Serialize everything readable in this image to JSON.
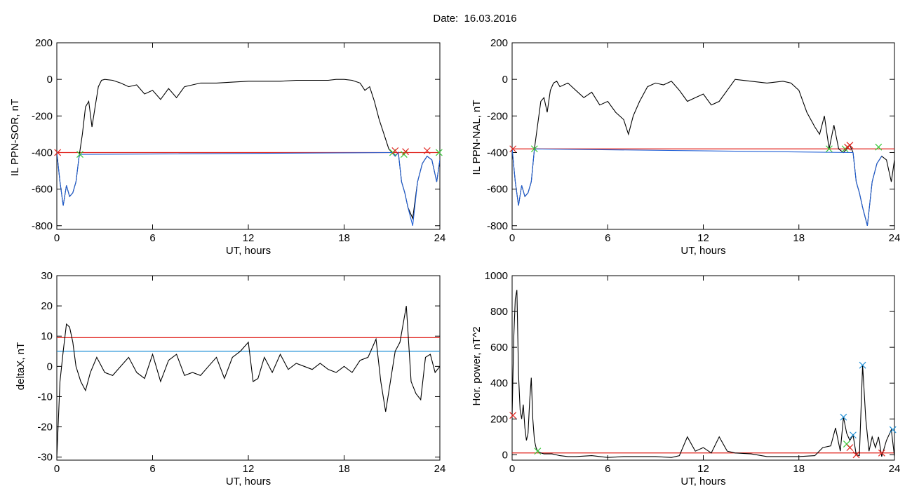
{
  "page": {
    "title": "Date:  16.03.2016"
  },
  "chart_data": [
    {
      "id": "il-sor",
      "type": "line",
      "xlabel": "UT, hours",
      "ylabel": "IL PPN-SOR, nT",
      "xlim": [
        0,
        24
      ],
      "ylim": [
        -820,
        200
      ],
      "xticks": [
        0,
        6,
        12,
        18,
        24
      ],
      "yticks": [
        200,
        0,
        -200,
        -400,
        -600,
        -800
      ],
      "series": [
        {
          "color": "#000000",
          "x": [
            0,
            0.2,
            0.4,
            0.6,
            0.8,
            1.0,
            1.2,
            1.4,
            1.6,
            1.8,
            2.0,
            2.2,
            2.4,
            2.6,
            2.8,
            3.0,
            3.5,
            4.0,
            4.5,
            5.0,
            5.5,
            6.0,
            6.5,
            7.0,
            7.5,
            8.0,
            8.5,
            9,
            10,
            11,
            12,
            13,
            14,
            15,
            16,
            17,
            17.5,
            18,
            18.5,
            19,
            19.3,
            19.6,
            19.9,
            20.2,
            20.5,
            20.8,
            21.0,
            21.2,
            21.4,
            21.6,
            21.8,
            22.0,
            22.3,
            22.6,
            22.9,
            23.2,
            23.5,
            23.8,
            24.0
          ],
          "y": [
            -400,
            -560,
            -690,
            -580,
            -640,
            -620,
            -560,
            -420,
            -300,
            -150,
            -120,
            -260,
            -150,
            -40,
            -5,
            0,
            -5,
            -20,
            -40,
            -30,
            -80,
            -60,
            -110,
            -50,
            -100,
            -40,
            -30,
            -20,
            -20,
            -15,
            -10,
            -10,
            -10,
            -5,
            -5,
            -5,
            0,
            0,
            -5,
            -20,
            -60,
            -40,
            -120,
            -220,
            -300,
            -380,
            -400,
            -420,
            -400,
            -560,
            -620,
            -700,
            -760,
            -560,
            -460,
            -420,
            -440,
            -560,
            -440
          ]
        },
        {
          "color": "#1f5fd6",
          "x": [
            0,
            0.2,
            0.4,
            0.6,
            0.8,
            1.0,
            1.2,
            1.4,
            1.5,
            20.9,
            21.0,
            21.2,
            21.4,
            21.6,
            21.8,
            22.0,
            22.3,
            22.6,
            22.9,
            23.2,
            23.5,
            23.8,
            24.0
          ],
          "y": [
            -400,
            -560,
            -690,
            -580,
            -640,
            -620,
            -560,
            -420,
            -410,
            -400,
            -400,
            -420,
            -400,
            -560,
            -620,
            -700,
            -800,
            -560,
            -460,
            -420,
            -440,
            -560,
            -440
          ]
        }
      ],
      "hlines": [
        {
          "y": -400,
          "color": "#e0201a"
        }
      ],
      "markers": [
        {
          "x": 0.05,
          "y": -400,
          "color": "#e0201a"
        },
        {
          "x": 1.45,
          "y": -410,
          "color": "#35c835"
        },
        {
          "x": 21.05,
          "y": -400,
          "color": "#35c835"
        },
        {
          "x": 21.2,
          "y": -390,
          "color": "#e0201a"
        },
        {
          "x": 21.75,
          "y": -410,
          "color": "#35c835"
        },
        {
          "x": 21.85,
          "y": -395,
          "color": "#e0201a"
        },
        {
          "x": 23.2,
          "y": -390,
          "color": "#e0201a"
        },
        {
          "x": 23.95,
          "y": -400,
          "color": "#35c835"
        }
      ]
    },
    {
      "id": "il-nal",
      "type": "line",
      "xlabel": "UT, hours",
      "ylabel": "IL PPN-NAL, nT",
      "xlim": [
        0,
        24
      ],
      "ylim": [
        -820,
        200
      ],
      "xticks": [
        0,
        6,
        12,
        18,
        24
      ],
      "yticks": [
        200,
        0,
        -200,
        -400,
        -600,
        -800
      ],
      "series": [
        {
          "color": "#000000",
          "x": [
            0,
            0.2,
            0.4,
            0.6,
            0.8,
            1.0,
            1.2,
            1.4,
            1.6,
            1.8,
            2.0,
            2.2,
            2.4,
            2.6,
            2.8,
            3.0,
            3.5,
            4.0,
            4.5,
            5.0,
            5.5,
            6.0,
            6.5,
            7.0,
            7.3,
            7.6,
            8.0,
            8.5,
            9.0,
            9.5,
            10.0,
            10.5,
            11.0,
            11.5,
            12.0,
            12.5,
            13.0,
            13.5,
            14.0,
            15,
            16,
            17,
            17.5,
            18.0,
            18.5,
            19.0,
            19.3,
            19.6,
            19.9,
            20.2,
            20.5,
            20.8,
            21.0,
            21.2,
            21.4,
            21.6,
            21.8,
            22.0,
            22.3,
            22.6,
            22.9,
            23.2,
            23.5,
            23.8,
            24.0
          ],
          "y": [
            -380,
            -560,
            -690,
            -580,
            -640,
            -620,
            -560,
            -380,
            -250,
            -120,
            -100,
            -180,
            -60,
            -20,
            -10,
            -40,
            -20,
            -60,
            -100,
            -70,
            -140,
            -120,
            -180,
            -220,
            -300,
            -200,
            -120,
            -40,
            -20,
            -30,
            -10,
            -60,
            -120,
            -100,
            -80,
            -140,
            -120,
            -60,
            0,
            -10,
            -20,
            -10,
            -20,
            -60,
            -180,
            -260,
            -300,
            -200,
            -380,
            -250,
            -380,
            -400,
            -380,
            -360,
            -400,
            -560,
            -620,
            -700,
            -800,
            -560,
            -460,
            -420,
            -440,
            -560,
            -440
          ]
        },
        {
          "color": "#1f5fd6",
          "x": [
            0,
            0.2,
            0.4,
            0.6,
            0.8,
            1.0,
            1.2,
            1.4,
            21.4,
            21.6,
            21.8,
            22.0,
            22.3,
            22.6,
            22.9,
            23.2
          ],
          "y": [
            -380,
            -560,
            -690,
            -580,
            -640,
            -620,
            -560,
            -380,
            -400,
            -560,
            -620,
            -700,
            -800,
            -560,
            -460,
            -420
          ]
        }
      ],
      "hlines": [
        {
          "y": -380,
          "color": "#e0201a"
        }
      ],
      "markers": [
        {
          "x": 0.05,
          "y": -380,
          "color": "#e0201a"
        },
        {
          "x": 1.4,
          "y": -380,
          "color": "#35c835"
        },
        {
          "x": 19.9,
          "y": -380,
          "color": "#35c835"
        },
        {
          "x": 20.9,
          "y": -380,
          "color": "#35c835"
        },
        {
          "x": 21.05,
          "y": -370,
          "color": "#e0201a"
        },
        {
          "x": 21.2,
          "y": -360,
          "color": "#e0201a"
        },
        {
          "x": 23.0,
          "y": -370,
          "color": "#35c835"
        }
      ]
    },
    {
      "id": "deltax",
      "type": "line",
      "xlabel": "UT, hours",
      "ylabel": "deltaX, nT",
      "xlim": [
        0,
        24
      ],
      "ylim": [
        -31,
        30
      ],
      "xticks": [
        0,
        6,
        12,
        18,
        24
      ],
      "yticks": [
        30,
        20,
        10,
        0,
        -10,
        -20,
        -30
      ],
      "series": [
        {
          "color": "#000000",
          "x": [
            0,
            0.2,
            0.4,
            0.6,
            0.8,
            1.0,
            1.2,
            1.5,
            1.8,
            2.1,
            2.5,
            3.0,
            3.5,
            4.0,
            4.5,
            5.0,
            5.5,
            6.0,
            6.5,
            7.0,
            7.5,
            8.0,
            8.5,
            9.0,
            9.5,
            10.0,
            10.5,
            11.0,
            11.5,
            12.0,
            12.3,
            12.6,
            13.0,
            13.5,
            14.0,
            14.5,
            15.0,
            15.5,
            16.0,
            16.5,
            17.0,
            17.5,
            18.0,
            18.5,
            19.0,
            19.5,
            20.0,
            20.3,
            20.6,
            20.9,
            21.2,
            21.5,
            21.9,
            22.2,
            22.5,
            22.8,
            23.1,
            23.4,
            23.7,
            24.0
          ],
          "y": [
            -30,
            -5,
            5,
            14,
            13,
            8,
            0,
            -5,
            -8,
            -2,
            3,
            -2,
            -3,
            0,
            3,
            -2,
            -4,
            4,
            -5,
            2,
            4,
            -3,
            -2,
            -3,
            0,
            3,
            -4,
            3,
            5,
            8,
            -5,
            -4,
            3,
            -2,
            4,
            -1,
            1,
            0,
            -1,
            1,
            -1,
            -2,
            0,
            -2,
            2,
            3,
            9,
            -5,
            -15,
            -5,
            5,
            8,
            20,
            -5,
            -9,
            -11,
            3,
            4,
            -2,
            0
          ]
        }
      ],
      "hlines": [
        {
          "y": 9.5,
          "color": "#e0201a"
        },
        {
          "y": 5,
          "color": "#1f8fd6"
        }
      ],
      "markers": []
    },
    {
      "id": "hor-power",
      "type": "line",
      "xlabel": "UT, hours",
      "ylabel": "Hor. power, nT^2",
      "xlim": [
        0,
        24
      ],
      "ylim": [
        -30,
        1000
      ],
      "xticks": [
        0,
        6,
        12,
        18,
        24
      ],
      "yticks": [
        1000,
        800,
        600,
        400,
        200,
        0
      ],
      "series": [
        {
          "color": "#000000",
          "x": [
            0,
            0.1,
            0.2,
            0.3,
            0.35,
            0.4,
            0.5,
            0.6,
            0.7,
            0.8,
            0.9,
            1.0,
            1.1,
            1.2,
            1.3,
            1.4,
            1.5,
            1.6,
            1.8,
            2.0,
            2.5,
            3.0,
            3.5,
            4.0,
            5.0,
            6.0,
            7.0,
            8.0,
            9.0,
            10.0,
            10.5,
            11.0,
            11.5,
            12.0,
            12.5,
            13.0,
            13.5,
            14.0,
            15.0,
            16.0,
            17.0,
            18.0,
            19.0,
            19.5,
            20.0,
            20.3,
            20.6,
            20.8,
            21.0,
            21.2,
            21.4,
            21.6,
            21.8,
            22.0,
            22.2,
            22.4,
            22.6,
            22.8,
            23.0,
            23.2,
            23.5,
            23.8,
            24.0
          ],
          "y": [
            220,
            650,
            870,
            920,
            700,
            450,
            250,
            200,
            280,
            150,
            80,
            120,
            300,
            430,
            200,
            80,
            40,
            20,
            10,
            5,
            5,
            -5,
            -10,
            -10,
            -5,
            -15,
            -10,
            -10,
            -10,
            -15,
            -5,
            100,
            20,
            40,
            10,
            100,
            20,
            10,
            5,
            -10,
            -10,
            -10,
            -5,
            40,
            50,
            150,
            20,
            210,
            120,
            80,
            110,
            0,
            -5,
            500,
            200,
            20,
            100,
            40,
            100,
            -10,
            80,
            140,
            -10
          ]
        }
      ],
      "hlines": [
        {
          "y": 10,
          "color": "#e0201a"
        }
      ],
      "markers": [
        {
          "x": 0.05,
          "y": 220,
          "color": "#e0201a"
        },
        {
          "x": 1.6,
          "y": 20,
          "color": "#35c835"
        },
        {
          "x": 20.8,
          "y": 210,
          "color": "#1f8fd6"
        },
        {
          "x": 21.0,
          "y": 60,
          "color": "#35c835"
        },
        {
          "x": 21.2,
          "y": 40,
          "color": "#e0201a"
        },
        {
          "x": 21.4,
          "y": 110,
          "color": "#1f8fd6"
        },
        {
          "x": 21.6,
          "y": 0,
          "color": "#e0201a"
        },
        {
          "x": 22.0,
          "y": 500,
          "color": "#1f8fd6"
        },
        {
          "x": 23.2,
          "y": 10,
          "color": "#e0201a"
        },
        {
          "x": 23.9,
          "y": 140,
          "color": "#1f8fd6"
        }
      ]
    }
  ]
}
